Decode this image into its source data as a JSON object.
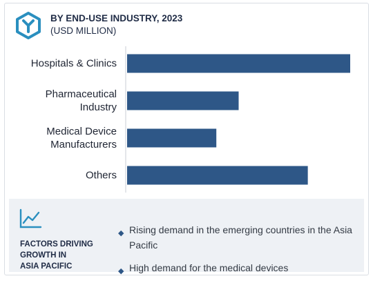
{
  "header": {
    "title": "BY END-USE INDUSTRY, 2023",
    "subtitle": "(USD MILLION)",
    "logo_icon": "hexagon-y-logo-icon"
  },
  "colors": {
    "bar": "#2e5787",
    "accent": "#2a8fbf",
    "heading": "#1f2b45"
  },
  "chart_data": {
    "type": "bar",
    "orientation": "horizontal",
    "title": "BY END-USE INDUSTRY, 2023",
    "subtitle": "(USD MILLION)",
    "categories": [
      [
        "Hospitals & Clinics"
      ],
      [
        "Pharmaceutical",
        "Industry"
      ],
      [
        "Medical Device",
        "Manufacturers"
      ],
      [
        "Others"
      ]
    ],
    "values": [
      100,
      50,
      40,
      81
    ],
    "xlim": [
      0,
      100
    ],
    "value_axis_labels": false,
    "grid": false,
    "legend": "none"
  },
  "footer": {
    "icon": "trend-chart-icon",
    "heading_lines": [
      "FACTORS DRIVING",
      "GROWTH IN",
      "ASIA PACIFIC"
    ],
    "factors": [
      {
        "bullet": "◆",
        "text": "Rising demand in the emerging countries in the Asia Pacific"
      },
      {
        "bullet": "◆",
        "text": "High demand for the medical devices"
      }
    ]
  }
}
